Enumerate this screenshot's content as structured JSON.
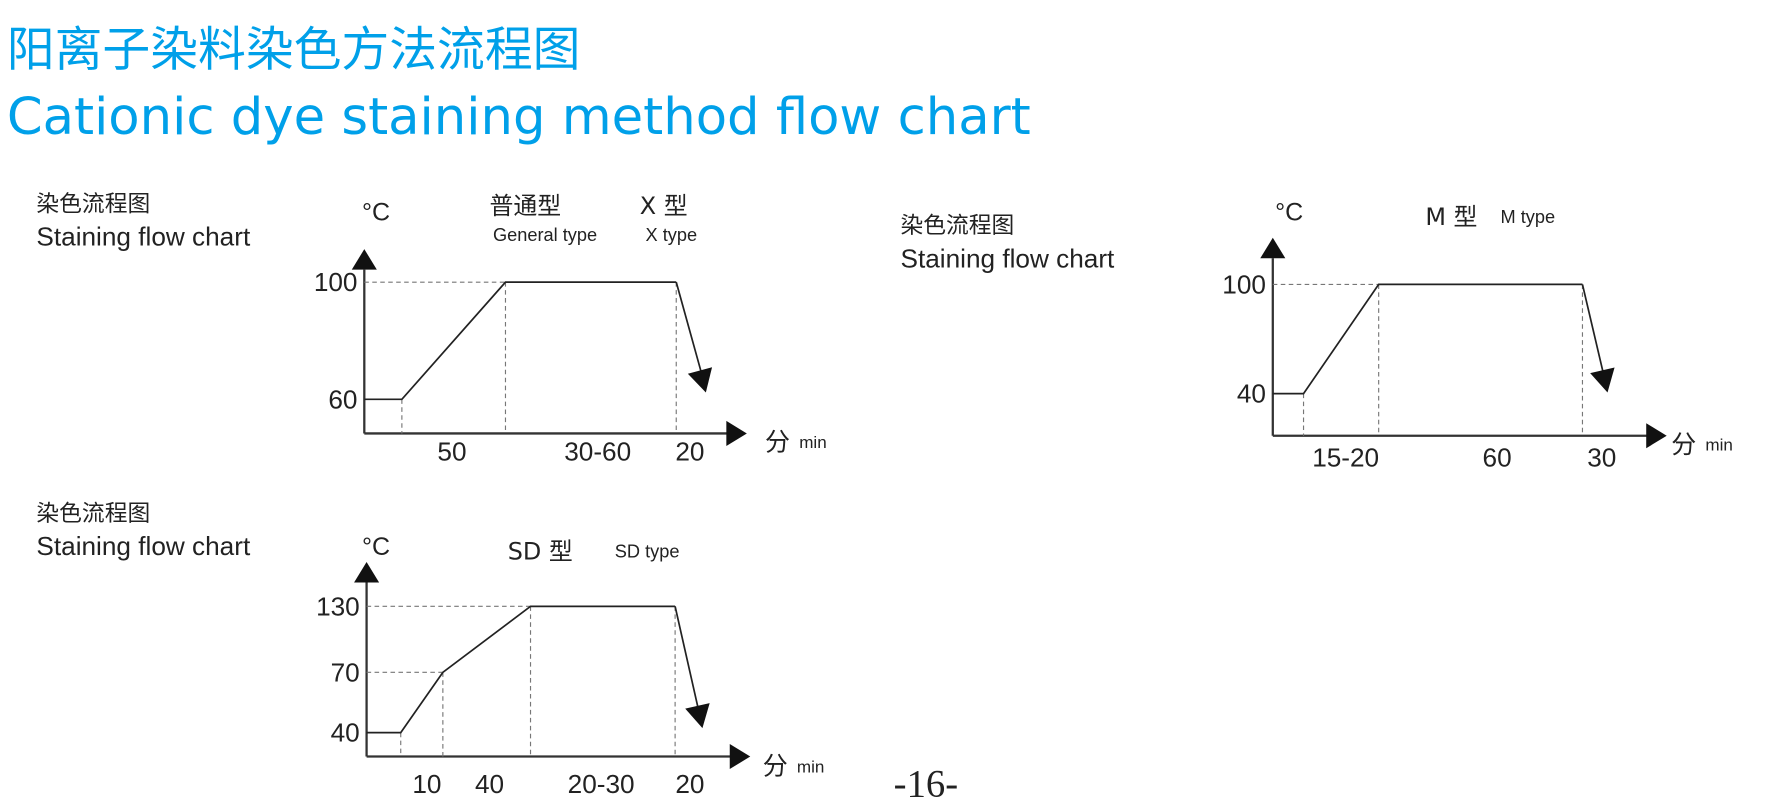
{
  "title_cn": "阳离子染料染色方法流程图",
  "title_en": "Cationic dye staining method flow chart",
  "page_number": "-16-",
  "colors": {
    "title": "#00a0e9",
    "lines": "#222222"
  },
  "chart_data": [
    {
      "type": "line",
      "label_cn": "染色流程图",
      "label_en": "Staining flow chart",
      "unit_y": "°C",
      "unit_x_cn": "分",
      "unit_x_en": "min",
      "type_cn": "普通型",
      "type_en": "General type",
      "type2_cn": "X 型",
      "type2_en": "X type",
      "y_ticks": [
        "100",
        "60"
      ],
      "temperatures": [
        60,
        60,
        100,
        100
      ],
      "segment_labels": [
        "50",
        "30-60",
        "20"
      ],
      "ends_with": "cooling-arrow"
    },
    {
      "type": "line",
      "label_cn": "染色流程图",
      "label_en": "Staining flow chart",
      "unit_y": "°C",
      "unit_x_cn": "分",
      "unit_x_en": "min",
      "type_cn": "M 型",
      "type_en": "M type",
      "y_ticks": [
        "100",
        "40"
      ],
      "temperatures": [
        40,
        40,
        100,
        100
      ],
      "segment_labels": [
        "15-20",
        "60",
        "30"
      ],
      "ends_with": "cooling-arrow"
    },
    {
      "type": "line",
      "label_cn": "染色流程图",
      "label_en": "Staining flow chart",
      "unit_y": "°C",
      "unit_x_cn": "分",
      "unit_x_en": "min",
      "type_cn": "SD 型",
      "type_en": "SD type",
      "y_ticks": [
        "130",
        "70",
        "40"
      ],
      "temperatures": [
        40,
        40,
        70,
        130,
        130
      ],
      "segment_labels": [
        "10",
        "40",
        "20-30",
        "20"
      ],
      "ends_with": "cooling-arrow"
    }
  ]
}
